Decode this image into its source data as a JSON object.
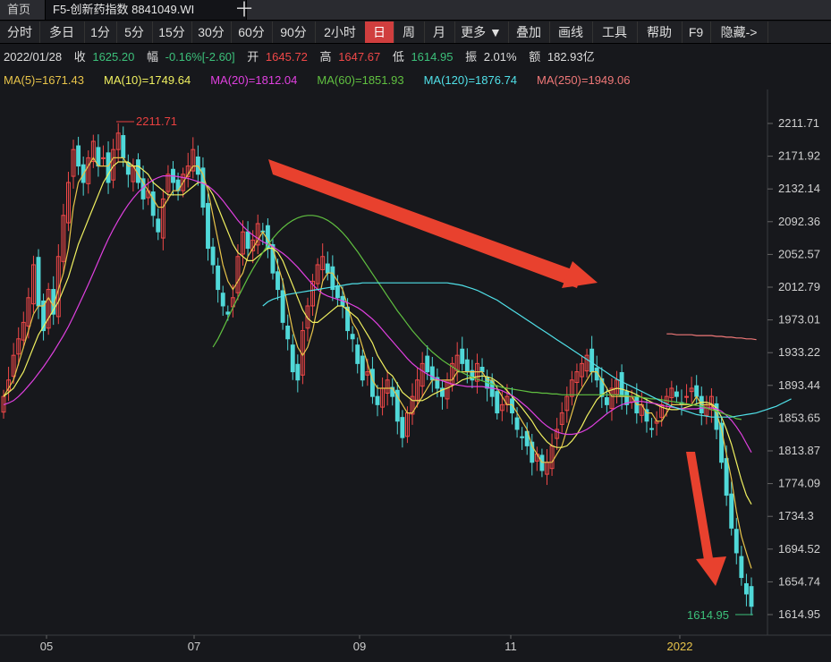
{
  "tabs": {
    "home": "首页",
    "active": "F5-创新药指数 8841049.WI",
    "plus": "十"
  },
  "toolbar": [
    "分时",
    "多日",
    "1分",
    "5分",
    "15分",
    "30分",
    "60分",
    "90分",
    "2小时",
    "日",
    "周",
    "月",
    "更多 ▼",
    "叠加",
    "画线",
    "工具",
    "帮助",
    "F9",
    "隐藏->"
  ],
  "toolbar_active": "日",
  "info": {
    "date": "2022/01/28",
    "close_label": "收",
    "close": "1625.20",
    "chg_label": "幅",
    "chg": "-0.16%[-2.60]",
    "open_label": "开",
    "open": "1645.72",
    "high_label": "高",
    "high": "1647.67",
    "low_label": "低",
    "low": "1614.95",
    "amp_label": "振",
    "amp": "2.01%",
    "amt_label": "额",
    "amt": "182.93亿"
  },
  "ma": [
    {
      "label": "MA(5)=1671.43",
      "color": "#e8c44a"
    },
    {
      "label": "MA(10)=1749.64",
      "color": "#f0f060"
    },
    {
      "label": "MA(20)=1812.04",
      "color": "#e040e0"
    },
    {
      "label": "MA(60)=1851.93",
      "color": "#60c040"
    },
    {
      "label": "MA(120)=1876.74",
      "color": "#50e0e8"
    },
    {
      "label": "MA(250)=1949.06",
      "color": "#f07878"
    }
  ],
  "chart_data": {
    "type": "candlestick",
    "x_ticks": [
      "05",
      "07",
      "09",
      "11",
      "2022"
    ],
    "y_ticks": [
      "2211.71",
      "2171.92",
      "2132.14",
      "2092.36",
      "2052.57",
      "2012.79",
      "1973.01",
      "1933.22",
      "1893.44",
      "1853.65",
      "1813.87",
      "1774.09",
      "1734.3",
      "1694.52",
      "1654.74",
      "1614.95"
    ],
    "ylim": [
      1614.95,
      2211.71
    ],
    "max_label": "2211.71",
    "min_label": "1614.95",
    "up_color": "#f04848",
    "down_color": "#50d8d8",
    "closes": [
      1880,
      1900,
      1930,
      1950,
      1970,
      2000,
      2040,
      1990,
      1960,
      2010,
      1980,
      2050,
      2100,
      2140,
      2180,
      2160,
      2140,
      2170,
      2190,
      2160,
      2170,
      2140,
      2180,
      2200,
      2170,
      2150,
      2160,
      2140,
      2120,
      2130,
      2100,
      2080,
      2120,
      2150,
      2140,
      2130,
      2150,
      2160,
      2180,
      2150,
      2110,
      2060,
      2040,
      2010,
      1990,
      1980,
      2000,
      2050,
      2080,
      2060,
      2070,
      2090,
      2080,
      2060,
      2030,
      2010,
      1970,
      1950,
      1910,
      1900,
      1960,
      1990,
      2020,
      2040,
      2050,
      2030,
      2010,
      2000,
      1990,
      1960,
      1950,
      1920,
      1900,
      1910,
      1880,
      1870,
      1890,
      1900,
      1880,
      1850,
      1830,
      1860,
      1880,
      1900,
      1920,
      1910,
      1900,
      1890,
      1880,
      1900,
      1920,
      1930,
      1920,
      1910,
      1900,
      1920,
      1910,
      1890,
      1880,
      1860,
      1870,
      1880,
      1860,
      1840,
      1830,
      1820,
      1800,
      1810,
      1790,
      1800,
      1820,
      1840,
      1860,
      1880,
      1900,
      1910,
      1920,
      1930,
      1910,
      1900,
      1880,
      1870,
      1890,
      1900,
      1880,
      1870,
      1880,
      1860,
      1870,
      1850,
      1840,
      1850,
      1870,
      1880,
      1890,
      1880,
      1870,
      1880,
      1890,
      1880,
      1860,
      1870,
      1880,
      1840,
      1800,
      1760,
      1720,
      1690,
      1660,
      1640,
      1625
    ],
    "ma_series": [
      {
        "name": "MA(5)",
        "color": "#e8c44a",
        "values": [
          1880,
          1890,
          1900,
          1920,
          1940,
          1960,
          1980,
          1990,
          1990,
          2000,
          1990,
          2010,
          2030,
          2060,
          2110,
          2140,
          2150,
          2160,
          2170,
          2160,
          2160,
          2160,
          2170,
          2170,
          2170,
          2160,
          2160,
          2150,
          2140,
          2130,
          2120,
          2110,
          2110,
          2120,
          2130,
          2130,
          2140,
          2150,
          2160,
          2160,
          2150,
          2130,
          2100,
          2070,
          2040,
          2020,
          2010,
          2020,
          2030,
          2050,
          2060,
          2070,
          2080,
          2070,
          2060,
          2040,
          2020,
          1990,
          1960,
          1940,
          1930,
          1940,
          1960,
          1990,
          2020,
          2030,
          2030,
          2020,
          2010,
          1990,
          1970,
          1960,
          1940,
          1920,
          1900,
          1890,
          1890,
          1890,
          1890,
          1880,
          1870,
          1860,
          1860,
          1870,
          1880,
          1890,
          1900,
          1900,
          1900,
          1900,
          1900,
          1910,
          1910,
          1910,
          1910,
          1910,
          1910,
          1900,
          1900,
          1890,
          1880,
          1870,
          1870,
          1860,
          1850,
          1840,
          1820,
          1810,
          1800,
          1800,
          1800,
          1810,
          1820,
          1840,
          1860,
          1880,
          1890,
          1900,
          1910,
          1910,
          1900,
          1890,
          1880,
          1880,
          1880,
          1880,
          1880,
          1870,
          1870,
          1860,
          1860,
          1850,
          1850,
          1860,
          1870,
          1870,
          1870,
          1870,
          1870,
          1880,
          1870,
          1870,
          1870,
          1860,
          1840,
          1810,
          1780,
          1740,
          1710,
          1690,
          1671
        ]
      },
      {
        "name": "MA(10)",
        "color": "#f0f060",
        "values": [
          1880,
          1885,
          1890,
          1900,
          1910,
          1925,
          1940,
          1955,
          1965,
          1975,
          1985,
          1995,
          2010,
          2025,
          2045,
          2065,
          2080,
          2095,
          2110,
          2125,
          2140,
          2150,
          2160,
          2165,
          2165,
          2165,
          2160,
          2160,
          2155,
          2150,
          2140,
          2135,
          2130,
          2125,
          2125,
          2125,
          2125,
          2130,
          2135,
          2140,
          2140,
          2135,
          2125,
          2110,
          2095,
          2080,
          2065,
          2055,
          2050,
          2045,
          2045,
          2050,
          2055,
          2060,
          2060,
          2055,
          2045,
          2030,
          2015,
          2000,
          1985,
          1975,
          1970,
          1970,
          1975,
          1980,
          1985,
          1990,
          1990,
          1985,
          1980,
          1975,
          1965,
          1955,
          1945,
          1930,
          1920,
          1910,
          1905,
          1895,
          1885,
          1880,
          1875,
          1875,
          1875,
          1878,
          1882,
          1885,
          1888,
          1890,
          1893,
          1896,
          1900,
          1902,
          1903,
          1904,
          1905,
          1904,
          1902,
          1898,
          1893,
          1887,
          1880,
          1873,
          1866,
          1858,
          1850,
          1840,
          1832,
          1825,
          1820,
          1818,
          1818,
          1820,
          1826,
          1834,
          1844,
          1856,
          1866,
          1876,
          1882,
          1886,
          1888,
          1890,
          1889,
          1887,
          1885,
          1882,
          1879,
          1876,
          1873,
          1870,
          1867,
          1865,
          1864,
          1864,
          1865,
          1867,
          1869,
          1871,
          1873,
          1873,
          1871,
          1866,
          1855,
          1840,
          1822,
          1800,
          1778,
          1760,
          1749
        ]
      },
      {
        "name": "MA(20)",
        "color": "#e040e0",
        "values": [
          1870,
          1872,
          1875,
          1880,
          1886,
          1893,
          1900,
          1908,
          1916,
          1925,
          1934,
          1944,
          1954,
          1965,
          1977,
          1990,
          2003,
          2016,
          2030,
          2044,
          2058,
          2071,
          2083,
          2094,
          2104,
          2113,
          2121,
          2128,
          2134,
          2139,
          2143,
          2146,
          2148,
          2148,
          2148,
          2147,
          2146,
          2145,
          2143,
          2141,
          2139,
          2136,
          2131,
          2125,
          2118,
          2110,
          2102,
          2094,
          2087,
          2081,
          2076,
          2072,
          2068,
          2065,
          2062,
          2058,
          2054,
          2049,
          2043,
          2037,
          2030,
          2023,
          2016,
          2010,
          2005,
          2002,
          2000,
          1998,
          1996,
          1994,
          1991,
          1988,
          1984,
          1979,
          1974,
          1968,
          1961,
          1954,
          1947,
          1940,
          1933,
          1926,
          1920,
          1915,
          1911,
          1907,
          1904,
          1901,
          1899,
          1897,
          1895,
          1894,
          1893,
          1892,
          1892,
          1892,
          1892,
          1891,
          1890,
          1889,
          1887,
          1884,
          1881,
          1877,
          1872,
          1867,
          1861,
          1855,
          1849,
          1844,
          1840,
          1837,
          1835,
          1834,
          1834,
          1835,
          1837,
          1840,
          1844,
          1849,
          1854,
          1859,
          1863,
          1867,
          1870,
          1872,
          1873,
          1874,
          1874,
          1873,
          1872,
          1871,
          1869,
          1868,
          1867,
          1866,
          1865,
          1865,
          1865,
          1865,
          1866,
          1866,
          1866,
          1865,
          1862,
          1857,
          1851,
          1843,
          1834,
          1823,
          1812
        ]
      },
      {
        "name": "MA(60)",
        "color": "#60c040",
        "values": [
          null,
          null,
          null,
          null,
          null,
          null,
          null,
          null,
          null,
          null,
          null,
          null,
          null,
          null,
          null,
          null,
          null,
          null,
          null,
          null,
          null,
          null,
          null,
          null,
          null,
          null,
          null,
          null,
          null,
          null,
          null,
          null,
          null,
          null,
          null,
          null,
          null,
          null,
          null,
          null,
          null,
          null,
          1940,
          1950,
          1962,
          1975,
          1988,
          2000,
          2012,
          2024,
          2035,
          2045,
          2055,
          2064,
          2072,
          2079,
          2085,
          2090,
          2094,
          2097,
          2099,
          2100,
          2100,
          2099,
          2097,
          2094,
          2090,
          2085,
          2079,
          2072,
          2064,
          2056,
          2047,
          2038,
          2029,
          2020,
          2011,
          2002,
          1993,
          1984,
          1976,
          1968,
          1960,
          1953,
          1946,
          1940,
          1934,
          1929,
          1924,
          1920,
          1916,
          1912,
          1909,
          1906,
          1903,
          1901,
          1899,
          1897,
          1895,
          1893,
          1891,
          1890,
          1889,
          1888,
          1887,
          1886,
          1885,
          1885,
          1884,
          1884,
          1883,
          1883,
          1882,
          1882,
          1882,
          1882,
          1882,
          1882,
          1882,
          1882,
          1882,
          1882,
          1882,
          1882,
          1881,
          1881,
          1880,
          1880,
          1879,
          1878,
          1877,
          1877,
          1876,
          1875,
          1874,
          1873,
          1872,
          1871,
          1870,
          1869,
          1868,
          1866,
          1864,
          1862,
          1860,
          1858,
          1856,
          1853,
          1852
        ]
      },
      {
        "name": "MA(120)",
        "color": "#50e0e8",
        "values": [
          null,
          null,
          null,
          null,
          null,
          null,
          null,
          null,
          null,
          null,
          null,
          null,
          null,
          null,
          null,
          null,
          null,
          null,
          null,
          null,
          null,
          null,
          null,
          null,
          null,
          null,
          null,
          null,
          null,
          null,
          null,
          null,
          null,
          null,
          null,
          null,
          null,
          null,
          null,
          null,
          null,
          null,
          null,
          null,
          null,
          null,
          null,
          null,
          null,
          null,
          null,
          null,
          1990,
          1995,
          1998,
          2000,
          2002,
          2004,
          2005,
          2006,
          2007,
          2008,
          2009,
          2010,
          2011,
          2012,
          2013,
          2014,
          2015,
          2016,
          2017,
          2017,
          2018,
          2018,
          2018,
          2018,
          2018,
          2018,
          2018,
          2018,
          2018,
          2018,
          2018,
          2018,
          2018,
          2018,
          2018,
          2018,
          2018,
          2018,
          2017,
          2016,
          2015,
          2013,
          2011,
          2009,
          2006,
          2003,
          2000,
          1997,
          1993,
          1989,
          1985,
          1981,
          1977,
          1973,
          1969,
          1965,
          1961,
          1957,
          1953,
          1949,
          1945,
          1941,
          1937,
          1933,
          1929,
          1925,
          1921,
          1917,
          1913,
          1909,
          1905,
          1901,
          1898,
          1895,
          1892,
          1889,
          1886,
          1883,
          1880,
          1877,
          1874,
          1871,
          1868,
          1866,
          1864,
          1862,
          1860,
          1858,
          1857,
          1856,
          1855,
          1855,
          1855,
          1855,
          1855,
          1856,
          1857,
          1858,
          1859,
          1860,
          1862,
          1864,
          1866,
          1868,
          1871,
          1874,
          1877
        ]
      },
      {
        "name": "MA(250)",
        "color": "#f07878",
        "values": [
          null,
          null,
          null,
          null,
          null,
          null,
          null,
          null,
          null,
          null,
          null,
          null,
          null,
          null,
          null,
          null,
          null,
          null,
          null,
          null,
          null,
          null,
          null,
          null,
          null,
          null,
          null,
          null,
          null,
          null,
          null,
          null,
          null,
          null,
          null,
          null,
          null,
          null,
          null,
          null,
          null,
          null,
          null,
          null,
          null,
          null,
          null,
          null,
          null,
          null,
          null,
          null,
          null,
          null,
          null,
          null,
          null,
          null,
          null,
          null,
          null,
          null,
          null,
          null,
          null,
          null,
          null,
          null,
          null,
          null,
          null,
          null,
          null,
          null,
          null,
          null,
          null,
          null,
          null,
          null,
          null,
          null,
          null,
          null,
          null,
          null,
          null,
          null,
          null,
          null,
          null,
          null,
          null,
          null,
          null,
          null,
          null,
          null,
          null,
          null,
          null,
          null,
          null,
          null,
          null,
          null,
          null,
          null,
          null,
          null,
          null,
          null,
          null,
          null,
          null,
          null,
          null,
          null,
          null,
          null,
          null,
          null,
          null,
          null,
          null,
          null,
          null,
          null,
          null,
          null,
          null,
          null,
          null,
          1956,
          1956,
          1955,
          1955,
          1955,
          1955,
          1954,
          1954,
          1954,
          1954,
          1953,
          1953,
          1952,
          1952,
          1951,
          1951,
          1950,
          1950,
          1949
        ]
      }
    ]
  }
}
